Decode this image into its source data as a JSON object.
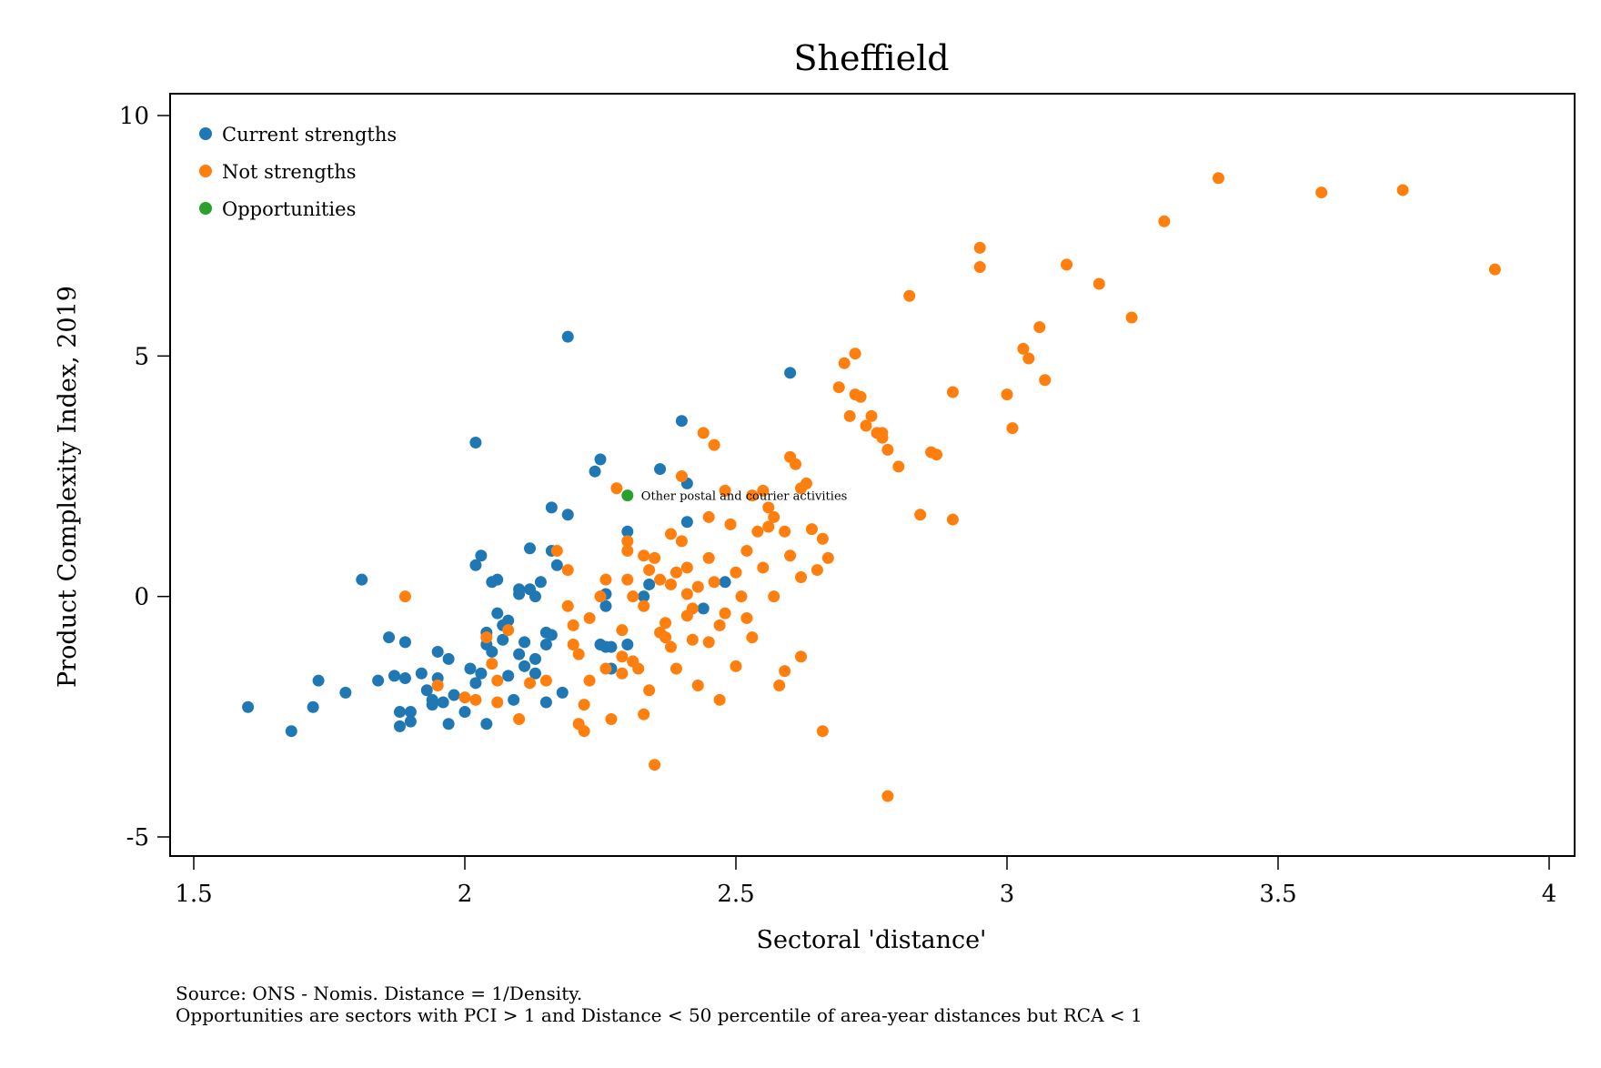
{
  "chart_data": {
    "type": "scatter",
    "title": "Sheffield",
    "xlabel": "Sectoral 'distance'",
    "ylabel": "Product Complexity Index, 2019",
    "xlim": [
      1.5,
      4
    ],
    "ylim": [
      -5,
      10
    ],
    "xticks": [
      1.5,
      2,
      2.5,
      3,
      3.5,
      4
    ],
    "xtick_labels": [
      "1.5",
      "2",
      "2.5",
      "3",
      "3.5",
      "4"
    ],
    "yticks": [
      -5,
      0,
      5,
      10
    ],
    "ytick_labels": [
      "-5",
      "0",
      "5",
      "10"
    ],
    "grid": false,
    "legend_position": "top-left",
    "series": [
      {
        "name": "Current strengths",
        "color": "#1f77b4",
        "points": [
          [
            1.6,
            -2.3
          ],
          [
            1.68,
            -2.8
          ],
          [
            1.72,
            -2.3
          ],
          [
            1.73,
            -1.75
          ],
          [
            1.78,
            -2.0
          ],
          [
            1.81,
            0.35
          ],
          [
            1.84,
            -1.75
          ],
          [
            1.86,
            -0.85
          ],
          [
            1.87,
            -1.65
          ],
          [
            1.88,
            -2.4
          ],
          [
            1.88,
            -2.7
          ],
          [
            1.89,
            -0.95
          ],
          [
            1.89,
            -1.7
          ],
          [
            1.9,
            -2.4
          ],
          [
            1.9,
            -2.6
          ],
          [
            1.92,
            -1.6
          ],
          [
            1.93,
            -1.95
          ],
          [
            1.94,
            -2.15
          ],
          [
            1.94,
            -2.25
          ],
          [
            1.95,
            -1.15
          ],
          [
            1.95,
            -1.7
          ],
          [
            1.96,
            -2.2
          ],
          [
            1.97,
            -1.3
          ],
          [
            1.97,
            -2.65
          ],
          [
            1.98,
            -2.05
          ],
          [
            2.0,
            -2.4
          ],
          [
            2.01,
            -1.5
          ],
          [
            2.02,
            0.65
          ],
          [
            2.02,
            -1.8
          ],
          [
            2.03,
            0.85
          ],
          [
            2.03,
            -1.6
          ],
          [
            2.04,
            -0.75
          ],
          [
            2.04,
            -1.0
          ],
          [
            2.04,
            -2.65
          ],
          [
            2.05,
            -1.15
          ],
          [
            2.05,
            0.3
          ],
          [
            2.06,
            0.35
          ],
          [
            2.06,
            -0.35
          ],
          [
            2.07,
            -0.6
          ],
          [
            2.07,
            -0.9
          ],
          [
            2.08,
            -1.65
          ],
          [
            2.08,
            -0.5
          ],
          [
            2.09,
            -2.15
          ],
          [
            2.1,
            0.05
          ],
          [
            2.1,
            0.15
          ],
          [
            2.1,
            -1.2
          ],
          [
            2.11,
            -1.45
          ],
          [
            2.11,
            -0.95
          ],
          [
            2.12,
            1.0
          ],
          [
            2.12,
            0.15
          ],
          [
            2.13,
            0.0
          ],
          [
            2.13,
            -1.6
          ],
          [
            2.13,
            -1.3
          ],
          [
            2.14,
            0.3
          ],
          [
            2.15,
            -0.75
          ],
          [
            2.15,
            -1.0
          ],
          [
            2.15,
            -2.2
          ],
          [
            2.16,
            1.85
          ],
          [
            2.16,
            0.95
          ],
          [
            2.16,
            -0.8
          ],
          [
            2.17,
            0.65
          ],
          [
            2.18,
            -2.0
          ],
          [
            2.19,
            1.7
          ],
          [
            2.19,
            5.4
          ],
          [
            2.02,
            3.2
          ],
          [
            2.24,
            2.6
          ],
          [
            2.25,
            2.85
          ],
          [
            2.25,
            -1.0
          ],
          [
            2.26,
            -0.2
          ],
          [
            2.26,
            0.05
          ],
          [
            2.26,
            -1.05
          ],
          [
            2.27,
            -1.5
          ],
          [
            2.27,
            -1.05
          ],
          [
            2.3,
            1.35
          ],
          [
            2.3,
            -1.0
          ],
          [
            2.31,
            -1.35
          ],
          [
            2.33,
            0.0
          ],
          [
            2.34,
            0.25
          ],
          [
            2.36,
            2.65
          ],
          [
            2.4,
            3.65
          ],
          [
            2.41,
            2.35
          ],
          [
            2.41,
            1.55
          ],
          [
            2.44,
            -0.25
          ],
          [
            2.48,
            0.3
          ],
          [
            2.6,
            4.65
          ]
        ]
      },
      {
        "name": "Not strengths",
        "color": "#ff7f0e",
        "points": [
          [
            1.89,
            0.0
          ],
          [
            1.95,
            -1.85
          ],
          [
            2.0,
            -2.1
          ],
          [
            2.02,
            -2.15
          ],
          [
            2.04,
            -0.85
          ],
          [
            2.05,
            -1.4
          ],
          [
            2.06,
            -1.75
          ],
          [
            2.06,
            -2.2
          ],
          [
            2.08,
            -0.7
          ],
          [
            2.1,
            -2.55
          ],
          [
            2.12,
            -1.8
          ],
          [
            2.15,
            -1.75
          ],
          [
            2.17,
            0.95
          ],
          [
            2.19,
            0.55
          ],
          [
            2.19,
            -0.2
          ],
          [
            2.2,
            -0.6
          ],
          [
            2.2,
            -1.0
          ],
          [
            2.21,
            -1.2
          ],
          [
            2.21,
            -2.65
          ],
          [
            2.22,
            -2.25
          ],
          [
            2.22,
            -2.8
          ],
          [
            2.23,
            -0.45
          ],
          [
            2.23,
            -1.75
          ],
          [
            2.25,
            0.0
          ],
          [
            2.26,
            -1.5
          ],
          [
            2.27,
            -2.55
          ],
          [
            2.28,
            2.25
          ],
          [
            2.29,
            -0.7
          ],
          [
            2.29,
            -1.25
          ],
          [
            2.29,
            -1.6
          ],
          [
            2.3,
            0.95
          ],
          [
            2.3,
            1.15
          ],
          [
            2.31,
            0.0
          ],
          [
            2.31,
            -1.35
          ],
          [
            2.32,
            -1.5
          ],
          [
            2.33,
            -0.2
          ],
          [
            2.33,
            -2.45
          ],
          [
            2.34,
            0.55
          ],
          [
            2.34,
            -1.95
          ],
          [
            2.35,
            -3.5
          ],
          [
            2.35,
            0.8
          ],
          [
            2.36,
            0.35
          ],
          [
            2.37,
            -0.55
          ],
          [
            2.37,
            -0.85
          ],
          [
            2.38,
            0.25
          ],
          [
            2.38,
            -1.05
          ],
          [
            2.39,
            -1.5
          ],
          [
            2.4,
            2.5
          ],
          [
            2.4,
            1.15
          ],
          [
            2.41,
            0.6
          ],
          [
            2.41,
            0.05
          ],
          [
            2.42,
            -0.25
          ],
          [
            2.42,
            -0.9
          ],
          [
            2.43,
            -1.85
          ],
          [
            2.44,
            3.4
          ],
          [
            2.45,
            1.65
          ],
          [
            2.45,
            0.8
          ],
          [
            2.46,
            3.15
          ],
          [
            2.46,
            0.3
          ],
          [
            2.47,
            -0.6
          ],
          [
            2.47,
            -2.15
          ],
          [
            2.48,
            2.2
          ],
          [
            2.49,
            1.5
          ],
          [
            2.5,
            -1.45
          ],
          [
            2.51,
            0.0
          ],
          [
            2.52,
            -0.45
          ],
          [
            2.53,
            -0.85
          ],
          [
            2.54,
            1.35
          ],
          [
            2.55,
            0.6
          ],
          [
            2.56,
            1.85
          ],
          [
            2.57,
            0.0
          ],
          [
            2.58,
            -1.85
          ],
          [
            2.59,
            -1.55
          ],
          [
            2.59,
            1.35
          ],
          [
            2.6,
            2.9
          ],
          [
            2.61,
            2.75
          ],
          [
            2.62,
            0.4
          ],
          [
            2.62,
            2.25
          ],
          [
            2.63,
            2.35
          ],
          [
            2.64,
            1.4
          ],
          [
            2.65,
            0.55
          ],
          [
            2.66,
            1.2
          ],
          [
            2.67,
            0.8
          ],
          [
            2.69,
            4.35
          ],
          [
            2.7,
            4.85
          ],
          [
            2.71,
            3.75
          ],
          [
            2.72,
            5.05
          ],
          [
            2.72,
            4.2
          ],
          [
            2.73,
            4.15
          ],
          [
            2.74,
            3.55
          ],
          [
            2.75,
            3.75
          ],
          [
            2.76,
            3.4
          ],
          [
            2.77,
            3.4
          ],
          [
            2.77,
            3.3
          ],
          [
            2.78,
            3.05
          ],
          [
            2.8,
            2.7
          ],
          [
            2.82,
            6.25
          ],
          [
            2.84,
            1.7
          ],
          [
            2.86,
            3.0
          ],
          [
            2.87,
            2.95
          ],
          [
            2.9,
            1.6
          ],
          [
            2.9,
            4.25
          ],
          [
            2.95,
            7.25
          ],
          [
            2.95,
            6.85
          ],
          [
            3.0,
            4.2
          ],
          [
            3.01,
            3.5
          ],
          [
            3.03,
            5.15
          ],
          [
            3.04,
            4.95
          ],
          [
            3.06,
            5.6
          ],
          [
            3.07,
            4.5
          ],
          [
            3.11,
            6.9
          ],
          [
            3.17,
            6.5
          ],
          [
            3.23,
            5.8
          ],
          [
            3.29,
            7.8
          ],
          [
            3.39,
            8.7
          ],
          [
            3.58,
            8.4
          ],
          [
            3.73,
            8.45
          ],
          [
            3.9,
            6.8
          ],
          [
            2.66,
            -2.8
          ],
          [
            2.78,
            -4.15
          ],
          [
            2.3,
            0.35
          ],
          [
            2.33,
            0.85
          ],
          [
            2.36,
            -0.75
          ],
          [
            2.39,
            0.5
          ],
          [
            2.26,
            0.35
          ],
          [
            2.53,
            2.1
          ],
          [
            2.57,
            1.65
          ],
          [
            2.6,
            0.85
          ],
          [
            2.5,
            0.5
          ],
          [
            2.43,
            0.2
          ],
          [
            2.55,
            2.2
          ],
          [
            2.56,
            1.45
          ],
          [
            2.62,
            -1.25
          ],
          [
            2.45,
            -0.95
          ],
          [
            2.48,
            -0.35
          ],
          [
            2.52,
            0.95
          ],
          [
            2.41,
            -0.4
          ],
          [
            2.38,
            1.3
          ]
        ]
      },
      {
        "name": "Opportunities",
        "color": "#2ca02c",
        "points": [
          [
            2.3,
            2.1
          ]
        ]
      }
    ],
    "annotations": [
      {
        "text": "Other postal and courier activities",
        "x": 2.3,
        "y": 2.1
      }
    ]
  },
  "notes": {
    "line1": "Source: ONS - Nomis. Distance = 1/Density.",
    "line2": "Opportunities are sectors with PCI > 1 and Distance < 50 percentile of area-year distances but RCA < 1"
  }
}
